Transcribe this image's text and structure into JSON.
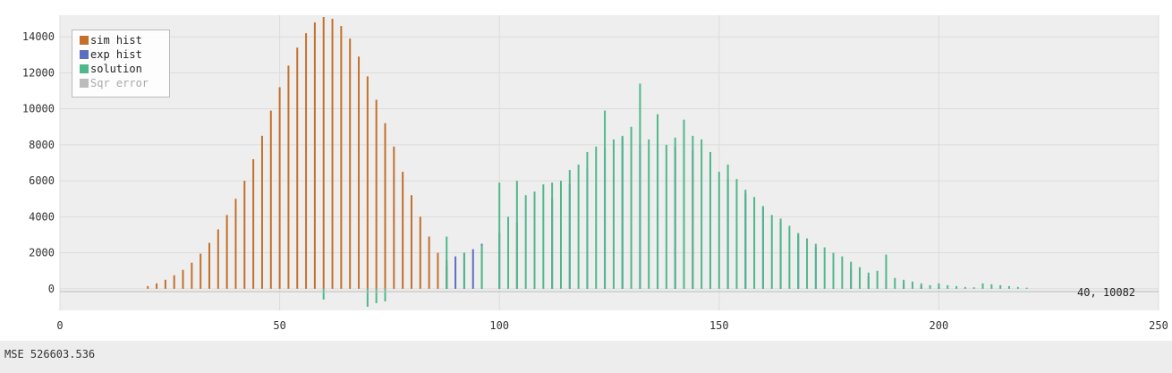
{
  "chart_data": {
    "type": "bar",
    "title": "",
    "xlabel": "",
    "ylabel": "",
    "xlim": [
      0,
      250
    ],
    "ylim": [
      -1200,
      15200
    ],
    "xticks": [
      0,
      50,
      100,
      150,
      200,
      250
    ],
    "yticks": [
      0,
      2000,
      4000,
      6000,
      8000,
      10000,
      12000,
      14000
    ],
    "grid": true,
    "legend_position": "top-left",
    "series": [
      {
        "name": "sim hist",
        "color": "#c4702a",
        "x": [
          20,
          22,
          24,
          26,
          28,
          30,
          32,
          34,
          36,
          38,
          40,
          42,
          44,
          46,
          48,
          50,
          52,
          54,
          56,
          58,
          60,
          62,
          64,
          66,
          68,
          70,
          72,
          74,
          76,
          78,
          80,
          82,
          84,
          86,
          88
        ],
        "values": [
          150,
          300,
          500,
          750,
          1050,
          1450,
          1950,
          2550,
          3300,
          4100,
          5000,
          6000,
          7200,
          8500,
          9900,
          11200,
          12400,
          13400,
          14200,
          14800,
          15100,
          15000,
          14600,
          13900,
          12900,
          11800,
          10500,
          9200,
          7900,
          6500,
          5200,
          4000,
          2900,
          2000,
          1300
        ]
      },
      {
        "name": "exp hist",
        "color": "#5b6fbe",
        "x": [
          88,
          90,
          92,
          94,
          96,
          100,
          104,
          108,
          112,
          116,
          120,
          124,
          128,
          132,
          136,
          140,
          144,
          148,
          152,
          156,
          160,
          164,
          168,
          172,
          176,
          180,
          184,
          188,
          192,
          196,
          200
        ],
        "values": [
          1600,
          1800,
          2000,
          2200,
          2500,
          3100,
          3700,
          4300,
          5000,
          5800,
          6700,
          7800,
          8400,
          8000,
          8100,
          7900,
          7700,
          7000,
          6100,
          5300,
          4500,
          3700,
          3000,
          2300,
          1600,
          1100,
          700,
          450,
          280,
          180,
          120
        ]
      },
      {
        "name": "solution",
        "color": "#4fb88a",
        "x": [
          60,
          70,
          72,
          74,
          88,
          92,
          96,
          100,
          102,
          104,
          106,
          108,
          110,
          112,
          114,
          116,
          118,
          120,
          122,
          124,
          126,
          128,
          130,
          132,
          134,
          136,
          138,
          140,
          142,
          144,
          146,
          148,
          150,
          152,
          154,
          156,
          158,
          160,
          162,
          164,
          166,
          168,
          170,
          172,
          174,
          176,
          178,
          180,
          182,
          184,
          186,
          188,
          190,
          192,
          194,
          196,
          198,
          200,
          202,
          204,
          206,
          208,
          210,
          212,
          214,
          216,
          218,
          220
        ],
        "values": [
          -600,
          -1000,
          -800,
          -700,
          2900,
          2000,
          2400,
          5900,
          4000,
          6000,
          5200,
          5400,
          5800,
          5900,
          6000,
          6600,
          6900,
          7600,
          7900,
          9900,
          8300,
          8500,
          9000,
          11400,
          8300,
          9700,
          8000,
          8400,
          9400,
          8500,
          8300,
          7600,
          6500,
          6900,
          6100,
          5500,
          5100,
          4600,
          4100,
          3900,
          3500,
          3100,
          2800,
          2500,
          2300,
          2000,
          1800,
          1500,
          1200,
          900,
          1000,
          1900,
          600,
          500,
          400,
          300,
          200,
          300,
          200,
          150,
          100,
          80,
          300,
          250,
          200,
          150,
          100,
          60
        ]
      },
      {
        "name": "Sqr error",
        "color": "#aaaaaa",
        "x": [],
        "values": []
      }
    ],
    "cursor_readout": "40, 10082",
    "footer": "MSE 526603.536"
  }
}
